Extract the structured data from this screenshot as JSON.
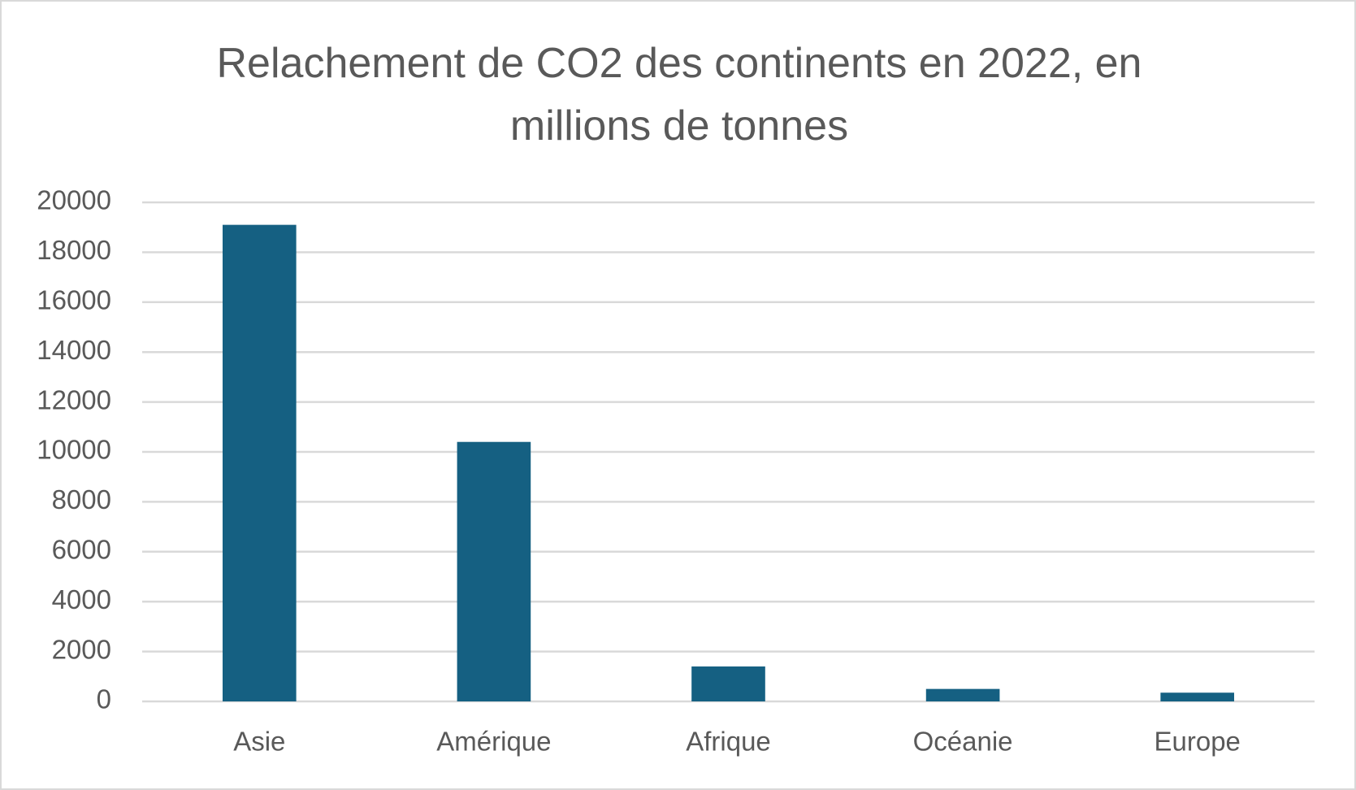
{
  "chart_data": {
    "type": "bar",
    "title": "Relachement de CO2 des continents en 2022, en millions de tonnes",
    "categories": [
      "Asie",
      "Amérique",
      "Afrique",
      "Océanie",
      "Europe"
    ],
    "values": [
      19100,
      10400,
      1400,
      500,
      350
    ],
    "color": "#156082",
    "ylim": [
      0,
      20000
    ],
    "yticks": [
      0,
      2000,
      4000,
      6000,
      8000,
      10000,
      12000,
      14000,
      16000,
      18000,
      20000
    ],
    "grid": true
  }
}
